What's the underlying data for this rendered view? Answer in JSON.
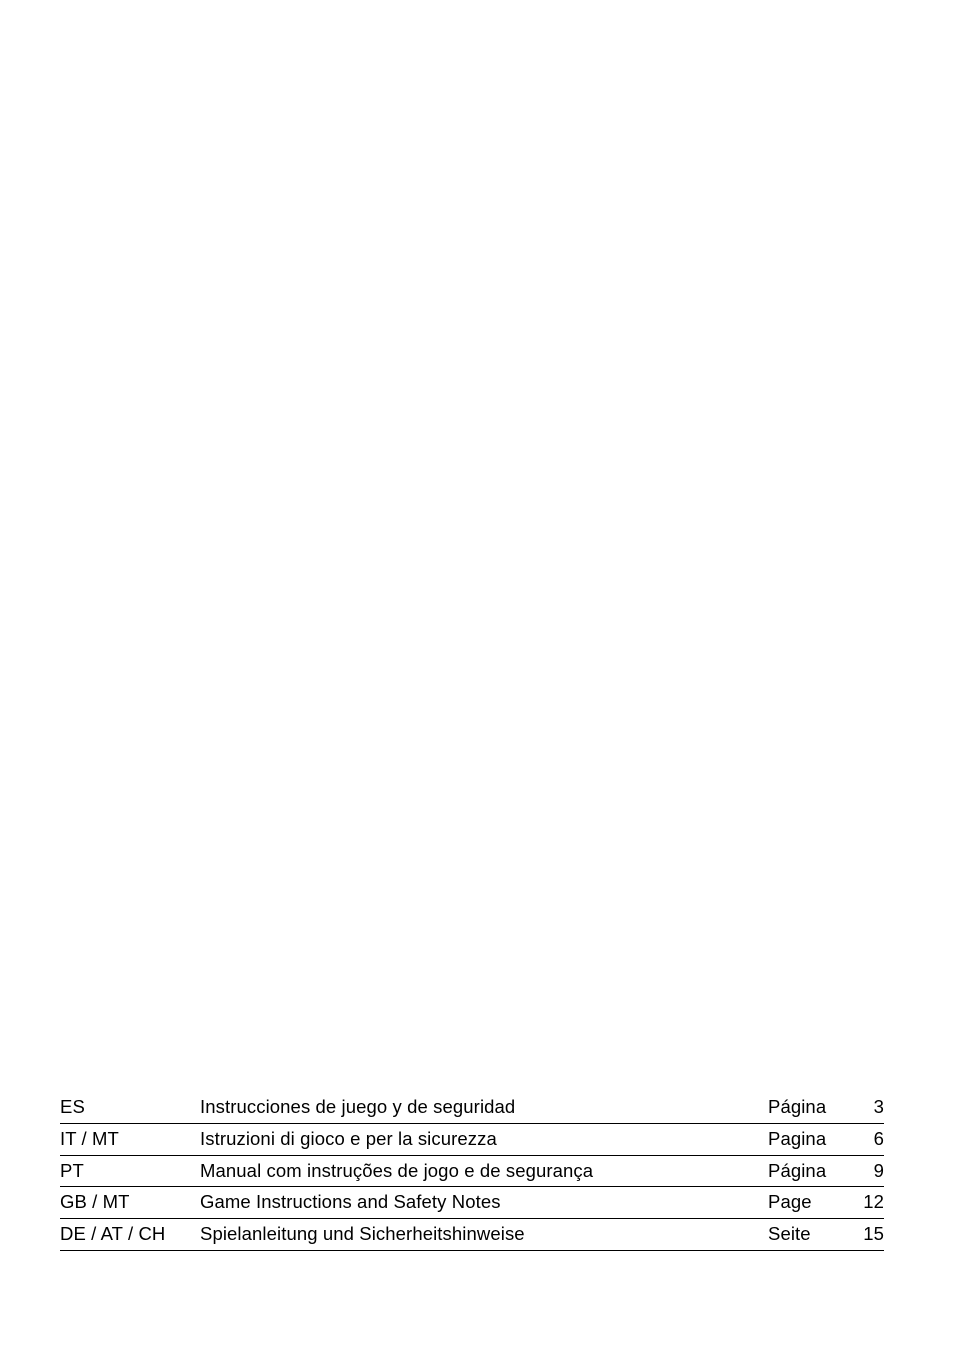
{
  "toc": {
    "rows": [
      {
        "code": "ES",
        "title": "Instrucciones de juego y de seguridad",
        "label": "Página",
        "page": "3"
      },
      {
        "code": "IT / MT",
        "title": "Istruzioni di gioco e per la sicurezza",
        "label": "Pagina",
        "page": "6"
      },
      {
        "code": "PT",
        "title": "Manual com instruções de jogo e de segurança",
        "label": "Página",
        "page": "9"
      },
      {
        "code": "GB / MT",
        "title": "Game Instructions and Safety Notes",
        "label": "Page",
        "page": "12"
      },
      {
        "code": "DE / AT / CH",
        "title": "Spielanleitung und Sicherheitshinweise",
        "label": "Seite",
        "page": "15"
      }
    ]
  }
}
